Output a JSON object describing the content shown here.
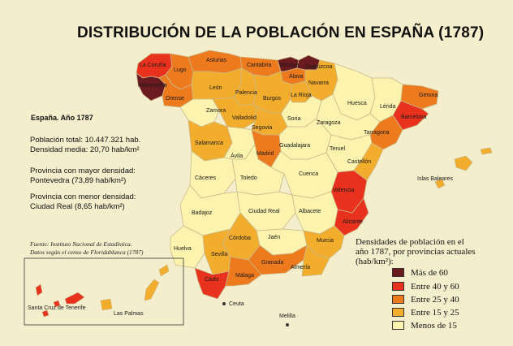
{
  "title": "DISTRIBUCIÓN DE LA POBLACIÓN EN ESPAÑA (1787)",
  "info": {
    "heading": "España. Año 1787",
    "total": "Población total: 10.447.321 hab.",
    "density": "Densidad media: 20,70 hab/km²",
    "max_label": "Provincia con mayor densidad:",
    "max_value": "Pontevedra (73,89 hab/km²)",
    "min_label": "Provincia con menor densidad:",
    "min_value": "Ciudad Real (8,65 hab/km²)"
  },
  "source": {
    "line1": "Fuente: Instituto Nacional de Estadística.",
    "line2": "Datos según el censo de Floridablanca (1787)"
  },
  "legend": {
    "title_line1": "Densidades de población en el",
    "title_line2": "año 1787, por provincias actuales",
    "title_line3": "(hab/km²):",
    "items": [
      {
        "label": "Más de 60",
        "color": "#6b1a1f"
      },
      {
        "label": "Entre 40 y 60",
        "color": "#e8321e"
      },
      {
        "label": "Entre 25 y 40",
        "color": "#ee7a1e"
      },
      {
        "label": "Entre 15 y 25",
        "color": "#f3ad2c"
      },
      {
        "label": "Menos de 15",
        "color": "#fbf3ae"
      }
    ]
  },
  "provinces": {
    "la_coruna": "La Coruña",
    "lugo": "Lugo",
    "pontevedra": "Pontevedra",
    "orense": "Orense",
    "asturias": "Asturias",
    "cantabria": "Cantabria",
    "vizcaya": "Vizcaya",
    "guipuzcoa": "Guipúzcoa",
    "alava": "Álava",
    "navarra": "Navarra",
    "leon": "León",
    "palencia": "Palencia",
    "burgos": "Burgos",
    "la_rioja": "La Rioja",
    "huesca": "Huesca",
    "lerida": "Lérida",
    "gerona": "Gerona",
    "barcelona": "Barcelona",
    "zamora": "Zamora",
    "valladolid": "Valladolid",
    "soria": "Soria",
    "zaragoza": "Zaragoza",
    "tarragona": "Tarragona",
    "segovia": "Segovia",
    "salamanca": "Salamanca",
    "avila": "Ávila",
    "madrid": "Madrid",
    "guadalajara": "Guadalajara",
    "teruel": "Teruel",
    "castellon": "Castellón",
    "caceres": "Cáceres",
    "toledo": "Toledo",
    "cuenca": "Cuenca",
    "islas_baleares": "Islas Baleares",
    "valencia": "Valencia",
    "badajoz": "Badajoz",
    "ciudad_real": "Ciudad Real",
    "albacete": "Albacete",
    "alicante": "Alicante",
    "cordoba": "Córdoba",
    "jaen": "Jaén",
    "murcia": "Murcia",
    "huelva": "Huelva",
    "sevilla": "Sevilla",
    "granada": "Granada",
    "almeria": "Almería",
    "cadiz": "Cádiz",
    "malaga": "Málaga",
    "ceuta": "Ceuta",
    "melilla": "Melilla",
    "santa_cruz": "Santa Cruz de Tenerife",
    "las_palmas": "Las Palmas"
  }
}
